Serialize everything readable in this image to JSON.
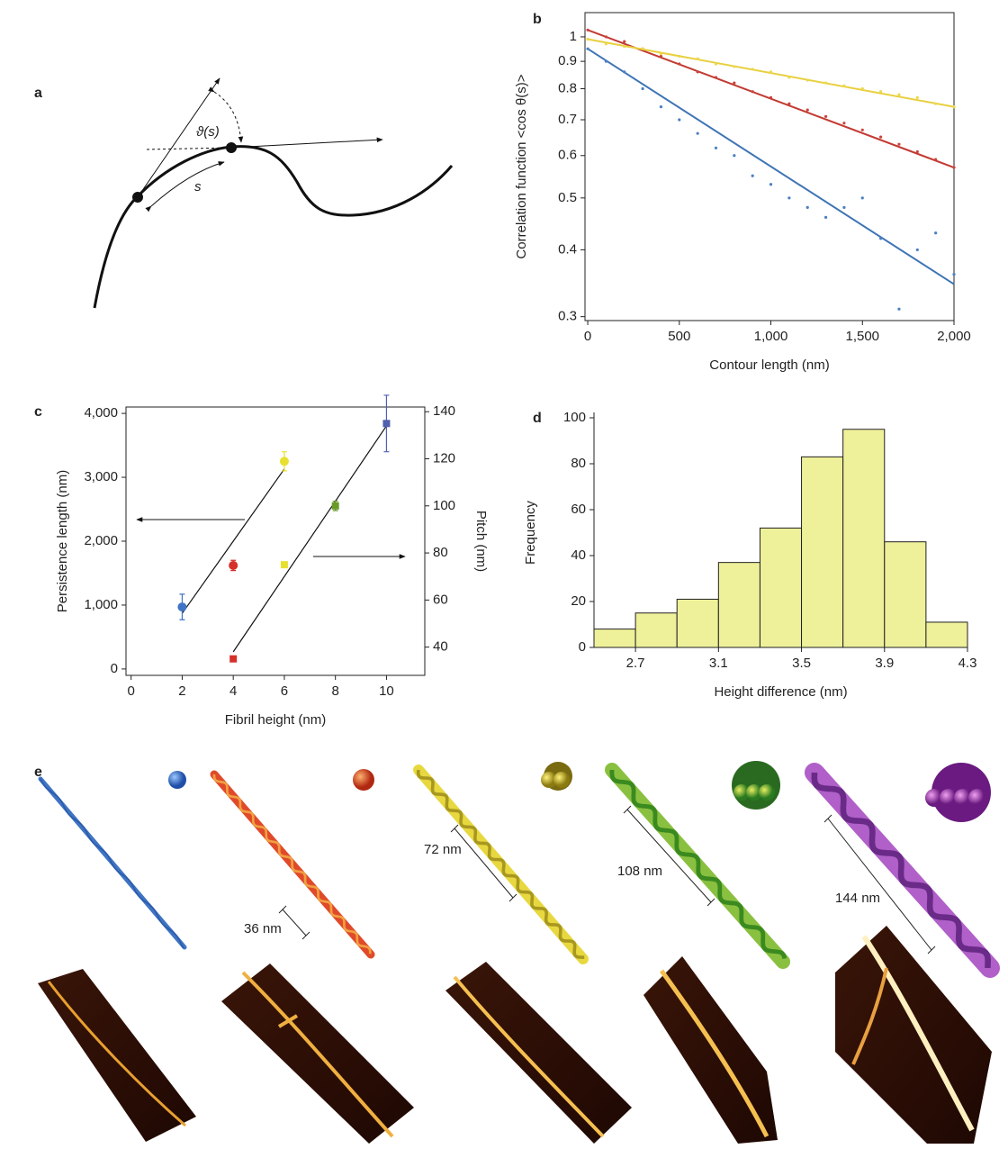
{
  "figure": {
    "panel_labels": [
      "a",
      "b",
      "c",
      "d",
      "e"
    ],
    "diagram": {
      "angle_label": "ϑ(s)",
      "arc_label": "s"
    },
    "scale_labels": [
      "36 nm",
      "72 nm",
      "108 nm",
      "144 nm"
    ]
  },
  "chart_data": [
    {
      "type": "scatter",
      "ylabel": "Correlation function <cos θ(s)>",
      "xlabel": "Contour length (nm)",
      "log_y": true,
      "xlim": [
        -15,
        2000
      ],
      "ylim": [
        0.295,
        1.11
      ],
      "xticks": [
        0,
        500,
        {
          "value": 1000,
          "label": "1,000"
        },
        {
          "value": 1500,
          "label": "1,500"
        },
        {
          "value": 2000,
          "label": "2,000"
        }
      ],
      "yticks": [
        0.3,
        0.4,
        0.5,
        0.6,
        0.7,
        0.8,
        0.9,
        1
      ],
      "x": [
        0,
        100,
        200,
        300,
        400,
        500,
        600,
        700,
        800,
        900,
        1000,
        1100,
        1200,
        1300,
        1400,
        1500,
        1600,
        1700,
        1800,
        1900,
        2000
      ],
      "series": [
        {
          "color": "#4a7fc1",
          "values": [
            0.95,
            0.9,
            0.86,
            0.8,
            0.74,
            0.7,
            0.66,
            0.62,
            0.6,
            0.55,
            0.53,
            0.5,
            0.48,
            0.46,
            0.48,
            0.5,
            0.42,
            0.31,
            0.4,
            0.43,
            0.36
          ]
        },
        {
          "color": "#c9443a",
          "values": [
            1.03,
            1.0,
            0.98,
            0.95,
            0.92,
            0.89,
            0.86,
            0.84,
            0.82,
            0.79,
            0.77,
            0.75,
            0.73,
            0.71,
            0.69,
            0.67,
            0.65,
            0.63,
            0.61,
            0.59,
            0.57
          ]
        },
        {
          "color": "#ecd84a",
          "values": [
            0.99,
            0.97,
            0.96,
            0.95,
            0.93,
            0.92,
            0.91,
            0.89,
            0.88,
            0.87,
            0.86,
            0.84,
            0.83,
            0.82,
            0.81,
            0.8,
            0.79,
            0.78,
            0.77,
            0.75,
            0.74
          ]
        }
      ],
      "fits": [
        {
          "color": "#3f74b5",
          "x": [
            0,
            2000
          ],
          "values": [
            0.95,
            0.345
          ]
        },
        {
          "color": "#c23a32",
          "x": [
            0,
            2000
          ],
          "values": [
            1.03,
            0.57
          ]
        },
        {
          "color": "#e8d040",
          "x": [
            0,
            2000
          ],
          "values": [
            0.99,
            0.74
          ]
        }
      ]
    },
    {
      "type": "scatter",
      "xlabel": "Fibril height (nm)",
      "ylabel": "Persistence length (nm)",
      "y2label": "Pitch (nm)",
      "xlim": [
        -0.2,
        11.5
      ],
      "ylim": [
        -100,
        4100
      ],
      "y2lim": [
        28,
        142
      ],
      "xticks": [
        0,
        2,
        4,
        6,
        8,
        10
      ],
      "yticks": [
        0,
        {
          "value": 1000,
          "label": "1,000"
        },
        {
          "value": 2000,
          "label": "2,000"
        },
        {
          "value": 3000,
          "label": "3,000"
        },
        {
          "value": 4000,
          "label": "4,000"
        }
      ],
      "y2ticks": [
        40,
        60,
        80,
        100,
        120,
        140
      ],
      "series": [
        {
          "marker": "circle",
          "x": [
            2,
            4,
            6
          ],
          "values": [
            970,
            1620,
            3250
          ],
          "errors": [
            200,
            80,
            150
          ],
          "colors": [
            "#3f74c4",
            "#d6302a",
            "#e8e030"
          ]
        },
        {
          "marker": "square",
          "axis": "y2",
          "x": [
            4,
            6,
            8,
            10
          ],
          "values": [
            35,
            75,
            100,
            135
          ],
          "errors": [
            0,
            1,
            2,
            12
          ],
          "colors": [
            "#d6302a",
            "#e8e030",
            "#6a9a2a",
            "#5060b0"
          ]
        }
      ],
      "fits": [
        {
          "x": [
            2,
            6
          ],
          "values": [
            870,
            3130
          ]
        },
        {
          "axis": "y2",
          "x": [
            4,
            10
          ],
          "values": [
            38,
            134
          ]
        }
      ]
    },
    {
      "type": "histogram",
      "xlabel": "Height difference (nm)",
      "ylabel": "Frequency",
      "color": "#eef09a",
      "bins": [
        2.5,
        2.7,
        2.9,
        3.1,
        3.3,
        3.5,
        3.7,
        3.9,
        4.1,
        4.3
      ],
      "values": [
        8,
        15,
        21,
        37,
        52,
        83,
        95,
        46,
        11
      ],
      "xlim": [
        2.5,
        4.3
      ],
      "ylim": [
        0,
        100
      ],
      "xticks": [
        2.7,
        3.1,
        3.5,
        3.9,
        4.3
      ],
      "yticks": [
        0,
        20,
        40,
        60,
        80,
        100
      ]
    }
  ]
}
